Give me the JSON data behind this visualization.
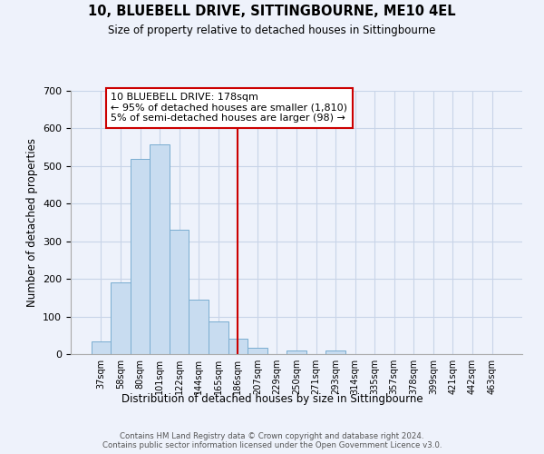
{
  "title": "10, BLUEBELL DRIVE, SITTINGBOURNE, ME10 4EL",
  "subtitle": "Size of property relative to detached houses in Sittingbourne",
  "xlabel": "Distribution of detached houses by size in Sittingbourne",
  "ylabel": "Number of detached properties",
  "bar_labels": [
    "37sqm",
    "58sqm",
    "80sqm",
    "101sqm",
    "122sqm",
    "144sqm",
    "165sqm",
    "186sqm",
    "207sqm",
    "229sqm",
    "250sqm",
    "271sqm",
    "293sqm",
    "314sqm",
    "335sqm",
    "357sqm",
    "378sqm",
    "399sqm",
    "421sqm",
    "442sqm",
    "463sqm"
  ],
  "bar_heights": [
    33,
    190,
    520,
    557,
    330,
    145,
    88,
    42,
    18,
    0,
    10,
    0,
    10,
    0,
    0,
    0,
    0,
    0,
    0,
    0,
    0
  ],
  "bar_color": "#c8dcf0",
  "bar_edge_color": "#7aadd0",
  "vline_x_index": 7,
  "vline_color": "#cc0000",
  "ylim": [
    0,
    700
  ],
  "yticks": [
    0,
    100,
    200,
    300,
    400,
    500,
    600,
    700
  ],
  "annotation_title": "10 BLUEBELL DRIVE: 178sqm",
  "annotation_line1": "← 95% of detached houses are smaller (1,810)",
  "annotation_line2": "5% of semi-detached houses are larger (98) →",
  "annotation_box_color": "#ffffff",
  "annotation_box_edge": "#cc0000",
  "footer_line1": "Contains HM Land Registry data © Crown copyright and database right 2024.",
  "footer_line2": "Contains public sector information licensed under the Open Government Licence v3.0.",
  "background_color": "#eef2fb",
  "grid_color": "#c8d4e8"
}
